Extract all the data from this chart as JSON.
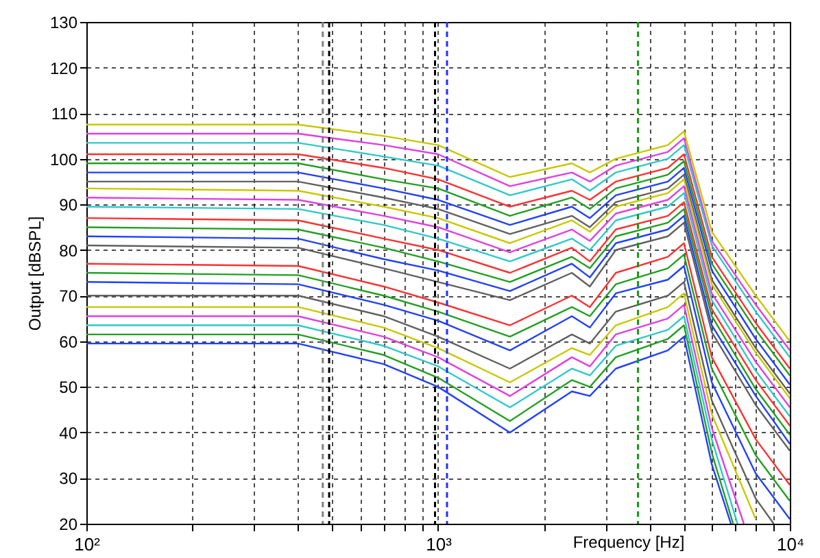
{
  "chart_data": {
    "type": "line",
    "xlabel": "Frequency [Hz]",
    "ylabel": "Output [dBSPL]",
    "log": "x",
    "grid": true,
    "line_style": "solid",
    "xlim": [
      100,
      10000
    ],
    "ylim": [
      20,
      130
    ],
    "xticks": [
      {
        "value": 100,
        "label": "10²"
      },
      {
        "value": 200,
        "label": null
      },
      {
        "value": 300,
        "label": null
      },
      {
        "value": 400,
        "label": null
      },
      {
        "value": 500,
        "label": null
      },
      {
        "value": 600,
        "label": null
      },
      {
        "value": 700,
        "label": null
      },
      {
        "value": 800,
        "label": null
      },
      {
        "value": 900,
        "label": null
      },
      {
        "value": 1000,
        "label": "10³"
      },
      {
        "value": 2000,
        "label": null
      },
      {
        "value": 3000,
        "label": null
      },
      {
        "value": 4000,
        "label": null
      },
      {
        "value": 5000,
        "label": null
      },
      {
        "value": 6000,
        "label": null
      },
      {
        "value": 7000,
        "label": null
      },
      {
        "value": 8000,
        "label": null
      },
      {
        "value": 9000,
        "label": null
      },
      {
        "value": 10000,
        "label": "10⁴"
      }
    ],
    "yticks": [
      20,
      30,
      40,
      50,
      60,
      70,
      80,
      90,
      100,
      110,
      120,
      130
    ],
    "x": [
      100,
      400,
      700,
      1000,
      1600,
      2400,
      2700,
      3200,
      4500,
      5000,
      6000,
      8000,
      10000
    ],
    "ref_lines": [
      {
        "axis": "x",
        "value": 470,
        "color": "#808080",
        "line_style": "dashed"
      },
      {
        "axis": "x",
        "value": 490,
        "color": "#000000",
        "line_style": "dashed"
      },
      {
        "axis": "x",
        "value": 980,
        "color": "#000000",
        "line_style": "dashed"
      },
      {
        "axis": "x",
        "value": 1060,
        "color": "#2030ff",
        "line_style": "dashed"
      },
      {
        "axis": "x",
        "value": 3700,
        "color": "#10a010",
        "line_style": "dashed"
      }
    ],
    "series": [
      {
        "color": "#c8c800",
        "values": [
          107.5,
          107.5,
          105,
          103,
          96,
          99,
          97,
          100,
          103,
          106,
          84,
          70,
          60
        ]
      },
      {
        "color": "#e040e0",
        "values": [
          105.5,
          105.5,
          103,
          101,
          94,
          97,
          95,
          98.5,
          101.5,
          104.5,
          82,
          68,
          58
        ]
      },
      {
        "color": "#30c8c8",
        "values": [
          103.5,
          103.5,
          100.5,
          98.5,
          92,
          95.5,
          93,
          97,
          100,
          103,
          81,
          66.5,
          56.5
        ]
      },
      {
        "color": "#ff3030",
        "values": [
          101,
          101,
          98,
          95.5,
          89.5,
          93,
          91,
          95,
          98,
          101,
          78.5,
          64,
          54
        ]
      },
      {
        "color": "#20a020",
        "values": [
          99,
          99,
          95.5,
          93.5,
          87.5,
          91.5,
          89,
          93.5,
          96.5,
          99.5,
          77,
          62.5,
          52.5
        ]
      },
      {
        "color": "#2040ff",
        "values": [
          97,
          97,
          93.5,
          91,
          85.5,
          89.5,
          87,
          92,
          95,
          98,
          75.5,
          60.5,
          50.5
        ]
      },
      {
        "color": "#606060",
        "values": [
          95,
          95,
          91.5,
          89,
          83.5,
          87.5,
          85,
          90.5,
          93.5,
          96.5,
          73.5,
          58.5,
          48.5
        ]
      },
      {
        "color": "#c8c800",
        "values": [
          93.5,
          93,
          89.5,
          87,
          81.5,
          86.5,
          84,
          89.5,
          92.5,
          95.5,
          72.5,
          57.5,
          47.5
        ]
      },
      {
        "color": "#e040e0",
        "values": [
          91.5,
          91,
          87.5,
          85,
          79.5,
          84.5,
          82,
          88,
          91,
          94,
          70.5,
          55.5,
          45.5
        ]
      },
      {
        "color": "#30c8c8",
        "values": [
          89.5,
          89,
          85.5,
          82.5,
          77.5,
          82.5,
          80,
          86.5,
          89.5,
          92.5,
          69,
          53.5,
          43.5
        ]
      },
      {
        "color": "#ff3030",
        "values": [
          87,
          86.5,
          82.5,
          80,
          75,
          80.5,
          77.5,
          84.5,
          87.5,
          90.5,
          67,
          51.5,
          41.5
        ]
      },
      {
        "color": "#20a020",
        "values": [
          85,
          84.5,
          80.5,
          77.5,
          73,
          78.5,
          76,
          83,
          86,
          89,
          65.5,
          49.5,
          39.5
        ]
      },
      {
        "color": "#2040ff",
        "values": [
          83,
          82.5,
          78,
          75.5,
          71,
          77,
          74,
          81.5,
          84.5,
          87.5,
          63.5,
          48,
          37.5
        ]
      },
      {
        "color": "#606060",
        "values": [
          81,
          80.5,
          76,
          73,
          69,
          75,
          72,
          80,
          83,
          86,
          62,
          46,
          36
        ]
      },
      {
        "color": "#ff3030",
        "values": [
          77,
          76.5,
          72,
          68.5,
          63.5,
          70,
          67.5,
          75,
          78.5,
          81.5,
          56.5,
          38.5,
          28.5
        ]
      },
      {
        "color": "#20a020",
        "values": [
          75,
          74.5,
          70,
          66.5,
          61,
          67.5,
          65.5,
          72.5,
          76,
          79,
          54,
          35,
          25
        ]
      },
      {
        "color": "#2040ff",
        "values": [
          73,
          72.5,
          68,
          64.5,
          58,
          65.5,
          63,
          70.5,
          73.5,
          76.5,
          51,
          31,
          21
        ]
      },
      {
        "color": "#606060",
        "x": [
          100,
          400,
          700,
          1000,
          1600,
          2400,
          2700,
          3200,
          4500,
          5000,
          6000,
          8000,
          9000
        ],
        "values": [
          70,
          70,
          65.5,
          61,
          54,
          61.5,
          59.5,
          66.5,
          70,
          73,
          47,
          25.5,
          20
        ]
      },
      {
        "color": "#c8c800",
        "x": [
          100,
          400,
          700,
          1000,
          1600,
          2400,
          2700,
          3200,
          4500,
          5000,
          6000,
          8000
        ],
        "values": [
          67.5,
          67.5,
          63,
          58.5,
          51,
          58.5,
          57,
          63.5,
          67.5,
          70.5,
          44,
          21
        ]
      },
      {
        "color": "#e040e0",
        "x": [
          100,
          400,
          700,
          1000,
          1600,
          2400,
          2700,
          3200,
          4500,
          5000,
          6000,
          7400
        ],
        "values": [
          65.5,
          65.5,
          61,
          56.5,
          48,
          56.5,
          54.5,
          61.5,
          65,
          68,
          41,
          20
        ]
      },
      {
        "color": "#30c8c8",
        "x": [
          100,
          400,
          700,
          1000,
          1600,
          2400,
          2700,
          3200,
          4500,
          5000,
          6000,
          7100
        ],
        "values": [
          63.5,
          63.5,
          59,
          54.5,
          45.5,
          54,
          52.5,
          59,
          62.5,
          65.5,
          38.5,
          20
        ]
      },
      {
        "color": "#20a020",
        "x": [
          100,
          400,
          700,
          1000,
          1600,
          2400,
          2700,
          3200,
          4500,
          5000,
          6000,
          6900
        ],
        "values": [
          61.5,
          61.5,
          57,
          52,
          42.5,
          51.5,
          50,
          56.5,
          60.5,
          63.5,
          35.5,
          20
        ]
      },
      {
        "color": "#2040ff",
        "x": [
          100,
          400,
          700,
          1000,
          1600,
          2400,
          2700,
          3200,
          4500,
          5000,
          6000,
          6800
        ],
        "values": [
          59.5,
          59.5,
          55,
          50,
          40,
          49,
          48,
          54,
          58,
          61,
          33,
          20
        ]
      }
    ]
  }
}
